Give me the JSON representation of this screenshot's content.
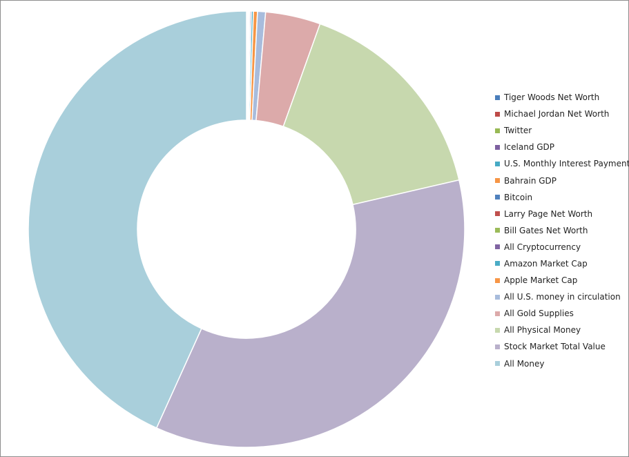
{
  "chart_data": {
    "type": "pie",
    "subtype": "doughnut",
    "title": "",
    "legend_position": "right",
    "slices": [
      {
        "label": "Tiger Woods Net Worth",
        "value": 0.01,
        "color": "#4a7ebb"
      },
      {
        "label": "Michael Jordan Net Worth",
        "value": 0.02,
        "color": "#be4b48"
      },
      {
        "label": "Twitter",
        "value": 0.03,
        "color": "#98b954"
      },
      {
        "label": "Iceland GDP",
        "value": 0.03,
        "color": "#7d60a0"
      },
      {
        "label": "U.S. Monthly Interest Payment",
        "value": 0.04,
        "color": "#46aac5"
      },
      {
        "label": "Bahrain GDP",
        "value": 0.05,
        "color": "#f69545"
      },
      {
        "label": "Bitcoin",
        "value": 0.05,
        "color": "#4f81bd"
      },
      {
        "label": "Larry Page Net Worth",
        "value": 0.01,
        "color": "#c0504d"
      },
      {
        "label": "Bill Gates Net Worth",
        "value": 0.02,
        "color": "#9bbb59"
      },
      {
        "label": "All Cryptocurrency",
        "value": 0.1,
        "color": "#8064a2"
      },
      {
        "label": "Amazon Market Cap",
        "value": 0.15,
        "color": "#4bacc6"
      },
      {
        "label": "Apple Market Cap",
        "value": 0.3,
        "color": "#f79646"
      },
      {
        "label": "All U.S. money in circulation",
        "value": 0.6,
        "color": "#a8bcdc"
      },
      {
        "label": "All Gold Supplies",
        "value": 4.1,
        "color": "#dcaaaa"
      },
      {
        "label": "All Physical Money",
        "value": 16.0,
        "color": "#c7d8ae"
      },
      {
        "label": "Stock Market Total Value",
        "value": 35.6,
        "color": "#b9b0cb"
      },
      {
        "label": "All Money",
        "value": 43.5,
        "color": "#a9cfdb"
      }
    ]
  }
}
